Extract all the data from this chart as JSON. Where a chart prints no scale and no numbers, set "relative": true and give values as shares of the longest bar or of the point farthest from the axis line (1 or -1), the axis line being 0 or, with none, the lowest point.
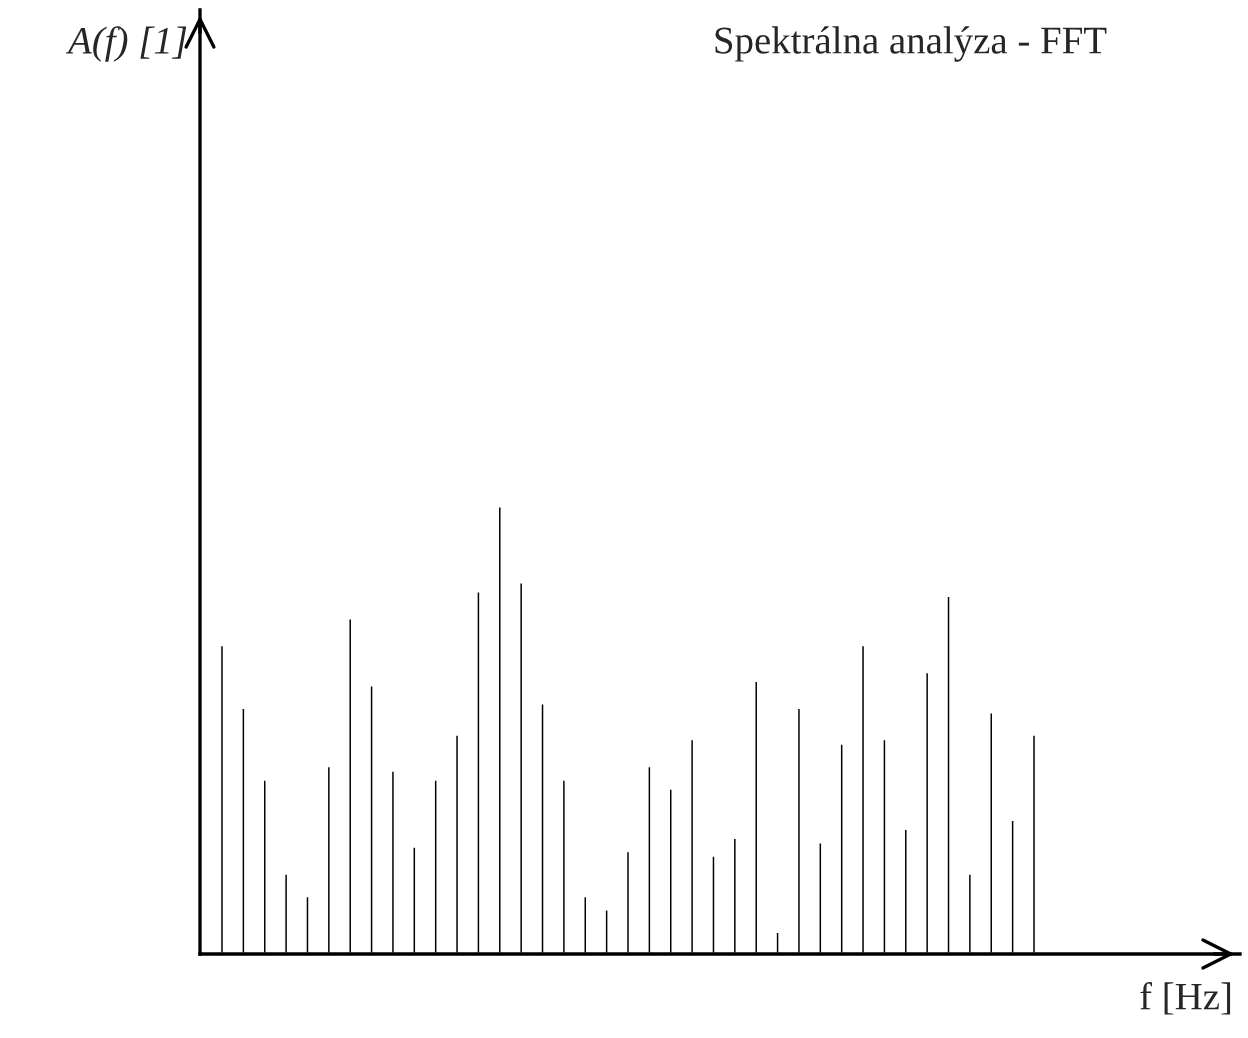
{
  "chart_data": {
    "type": "bar",
    "title": "Spektrálna analýza - FFT",
    "xlabel": "f [Hz]",
    "annotations": [
      "A(f) [1]"
    ],
    "relative": true,
    "color": "#000000",
    "categories": [
      null,
      null,
      null,
      null,
      null,
      null,
      null,
      null,
      null,
      null,
      null,
      null,
      null,
      null,
      null,
      null,
      null,
      null,
      null,
      null,
      null,
      null,
      null,
      null,
      null,
      null,
      null,
      null,
      null,
      null,
      null,
      null,
      null,
      null,
      null,
      null,
      null,
      null,
      null
    ],
    "values": [
      0.69,
      0.55,
      0.39,
      0.18,
      0.13,
      0.42,
      0.75,
      0.6,
      0.41,
      0.24,
      0.39,
      0.49,
      0.81,
      1,
      0.83,
      0.56,
      0.39,
      0.13,
      0.1,
      0.23,
      0.42,
      0.37,
      0.48,
      0.22,
      0.26,
      0.61,
      0.05,
      0.55,
      0.25,
      0.47,
      0.69,
      0.48,
      0.28,
      0.63,
      0.8,
      0.18,
      0.54,
      0.3,
      0.49
    ]
  }
}
